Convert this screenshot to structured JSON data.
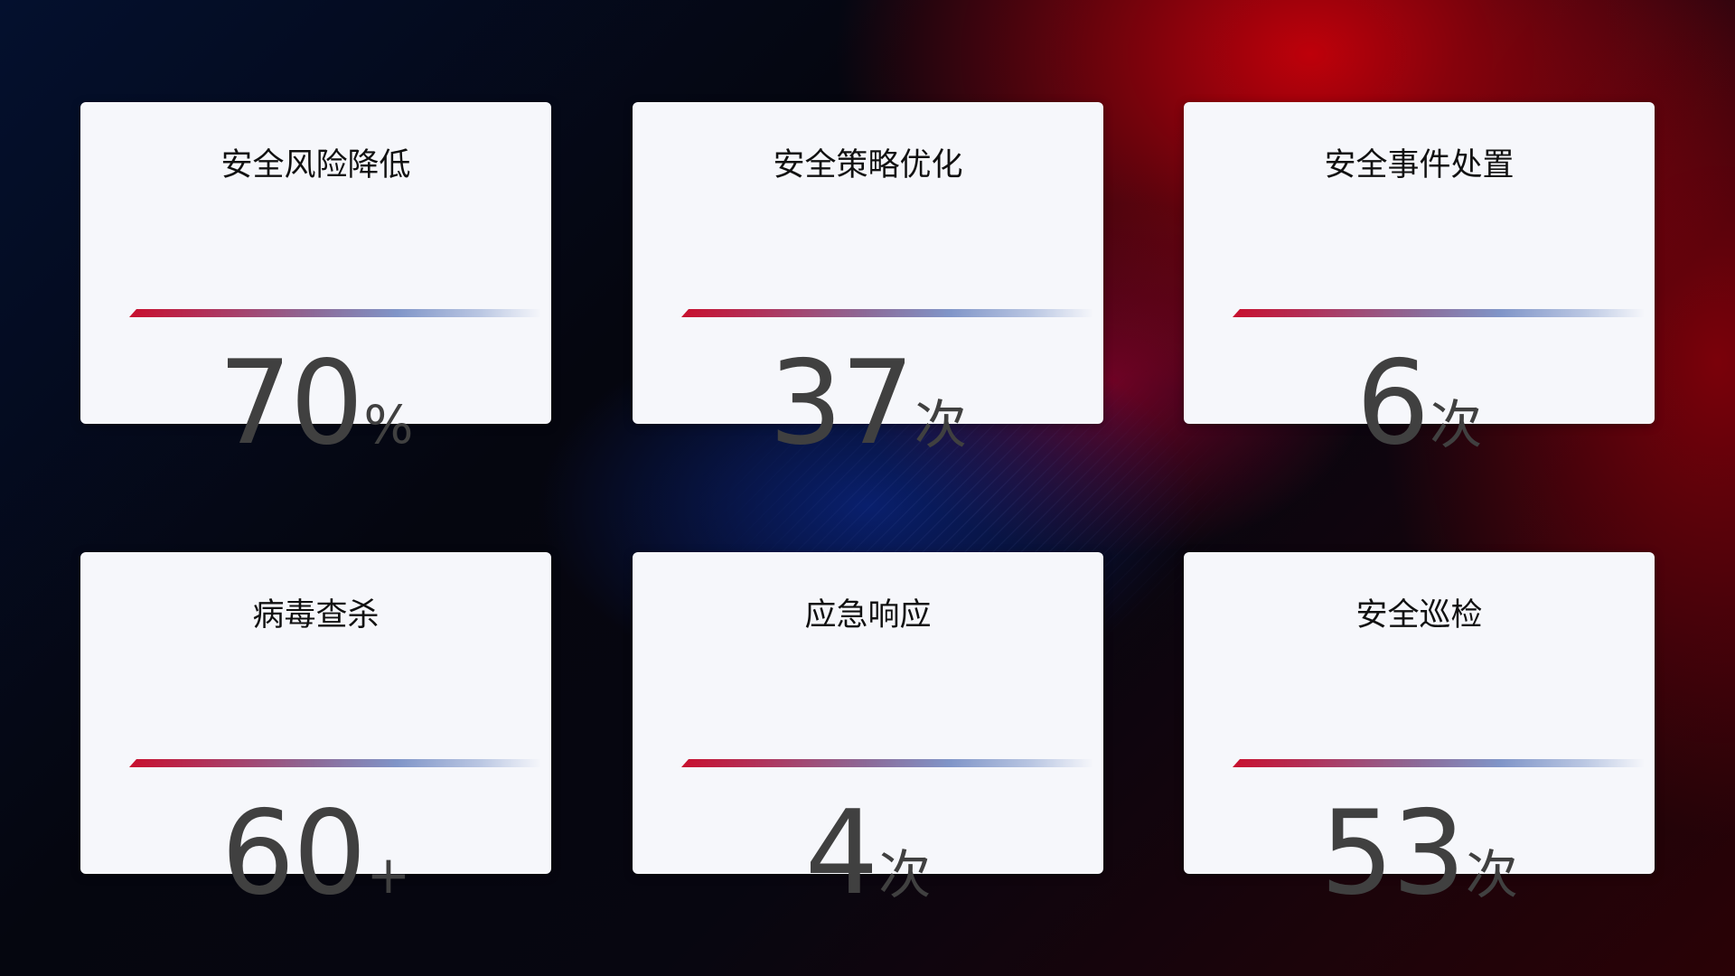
{
  "cards": [
    {
      "title": "安全风险降低",
      "value": "70",
      "unit": "%"
    },
    {
      "title": "安全策略优化",
      "value": "37",
      "unit": "次"
    },
    {
      "title": "安全事件处置",
      "value": "6",
      "unit": "次"
    },
    {
      "title": "病毒查杀",
      "value": "60",
      "unit": "+"
    },
    {
      "title": "应急响应",
      "value": "4",
      "unit": "次"
    },
    {
      "title": "安全巡检",
      "value": "53",
      "unit": "次"
    }
  ],
  "colors": {
    "accent_red": "#c8102e",
    "accent_blue": "#8095c8",
    "card_bg": "#f6f7fb",
    "value_text": "#404040"
  }
}
